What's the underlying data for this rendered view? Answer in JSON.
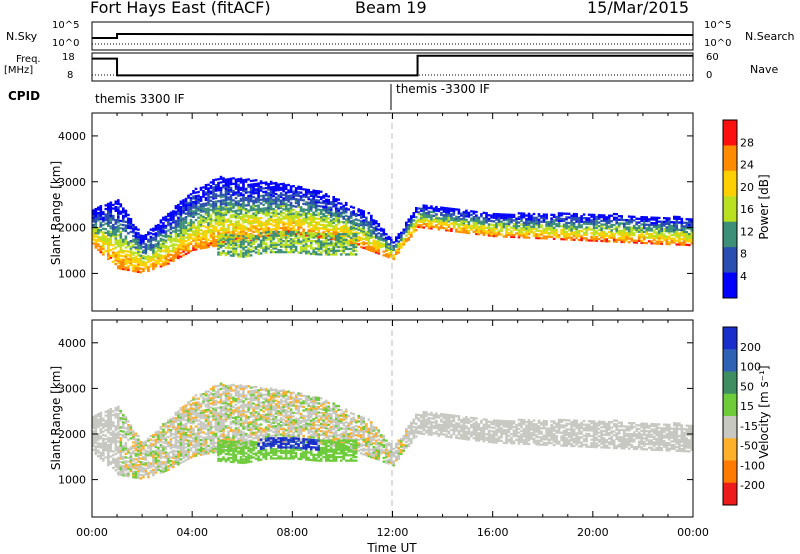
{
  "header": {
    "station": "Fort Hays East (fitACF)",
    "beam": "Beam 19",
    "date": "15/Mar/2015"
  },
  "strip": {
    "nsky_label": "N.Sky",
    "nsky_ticks": [
      "10^5",
      "10^0"
    ],
    "nsearch_label": "N.Search",
    "nsearch_ticks": [
      "10^5",
      "10^0"
    ],
    "freq_label": "Freq.",
    "freq_unit": "[MHz]",
    "freq_ticks": [
      "18",
      "8"
    ],
    "nave_label": "Nave",
    "nave_ticks": [
      "60",
      "0"
    ],
    "cpid_label": "CPID",
    "cpid_segments": [
      {
        "label": "themis 3300 IF",
        "start_hour": 0
      },
      {
        "label": "themis -3300 IF",
        "start_hour": 12
      }
    ]
  },
  "panels": {
    "ylabel": "Slant Range [km]",
    "xlabel": "Time UT",
    "x_ticks": [
      "00:00",
      "04:00",
      "08:00",
      "12:00",
      "16:00",
      "20:00",
      "00:00"
    ],
    "y_ticks": [
      "1000",
      "2000",
      "3000",
      "4000"
    ],
    "power_cbar": {
      "label": "Power [dB]",
      "ticks": [
        "4",
        "8",
        "12",
        "16",
        "20",
        "24",
        "28"
      ],
      "colors": [
        "#0000ff",
        "#2a4fb0",
        "#3e8f78",
        "#b9e021",
        "#ffd000",
        "#ff8c00",
        "#ff1010"
      ]
    },
    "velocity_cbar": {
      "label": "Velocity [m s⁻¹]",
      "ticks": [
        "200",
        "100",
        "50",
        "15",
        "-15",
        "-50",
        "-100",
        "-200"
      ],
      "colors": [
        "#1a2ecc",
        "#2f62b5",
        "#3f8e62",
        "#6ecb3a",
        "#c8c8c2",
        "#ffb02a",
        "#ff7a00",
        "#ee1b1b"
      ]
    }
  },
  "chart_data": {
    "type": "heatmap",
    "title": "Fort Hays East (fitACF)  Beam 19  15/Mar/2015",
    "xlabel": "Time UT",
    "ylabel": "Slant Range [km]",
    "xlim": [
      0,
      24
    ],
    "ylim": [
      180,
      4500
    ],
    "x_unit": "hours UT",
    "grid": false,
    "frequency_mhz": [
      {
        "hours": [
          0,
          1
        ],
        "value": 16
      },
      {
        "hours": [
          1,
          13
        ],
        "value": 10
      },
      {
        "hours": [
          13,
          24
        ],
        "value": 17
      }
    ],
    "scatter_bands": [
      {
        "name": "main echo lower edge",
        "x": [
          0,
          1,
          2,
          3,
          4,
          6,
          8,
          10,
          11,
          12,
          13,
          16,
          20,
          24
        ],
        "y": [
          1600,
          1100,
          1000,
          1200,
          1500,
          1700,
          1850,
          1700,
          1500,
          1300,
          2000,
          1800,
          1700,
          1600
        ]
      },
      {
        "name": "main echo upper edge",
        "x": [
          0,
          1,
          2,
          3,
          4,
          5,
          7,
          9,
          11,
          12,
          13,
          16,
          20,
          24
        ],
        "y": [
          2400,
          2600,
          1800,
          2300,
          2800,
          3100,
          3000,
          2800,
          2300,
          1700,
          2500,
          2300,
          2300,
          2200
        ]
      },
      {
        "name": "mid layer",
        "x": [
          5,
          6,
          7,
          8,
          9,
          10
        ],
        "y": [
          1600,
          1550,
          1650,
          1650,
          1600,
          1600
        ]
      }
    ],
    "power_range_db": [
      4,
      28
    ],
    "velocity_range_ms": [
      -200,
      200
    ]
  }
}
